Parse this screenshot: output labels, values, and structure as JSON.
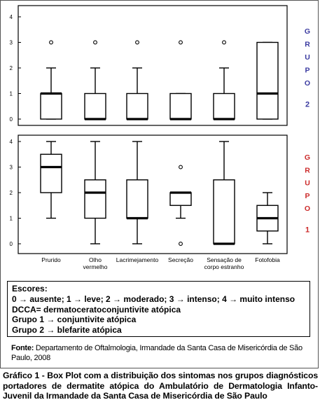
{
  "chart_data": [
    {
      "type": "boxplot",
      "group_label": "GRUPO 2",
      "group_label_color": "#3a3aa0",
      "ylim": [
        0,
        4
      ],
      "yticks": [
        "0",
        "1",
        "2",
        "3",
        "4"
      ],
      "categories": [
        "Prurido",
        "Olho vermelho",
        "Lacrimejamento",
        "Secreção",
        "Sensação de corpo estranho",
        "Fotofobia"
      ],
      "boxes": [
        {
          "q1": 0,
          "median": 1,
          "q3": 1,
          "whisker_low": 0,
          "whisker_high": 2,
          "outliers": [
            3
          ]
        },
        {
          "q1": 0,
          "median": 0,
          "q3": 1,
          "whisker_low": 0,
          "whisker_high": 2,
          "outliers": [
            3
          ]
        },
        {
          "q1": 0,
          "median": 0,
          "q3": 1,
          "whisker_low": 0,
          "whisker_high": 2,
          "outliers": [
            3
          ]
        },
        {
          "q1": 0,
          "median": 0,
          "q3": 1,
          "whisker_low": 0,
          "whisker_high": 1,
          "outliers": [
            3
          ]
        },
        {
          "q1": 0,
          "median": 0,
          "q3": 1,
          "whisker_low": 0,
          "whisker_high": 2,
          "outliers": [
            3
          ]
        },
        {
          "q1": 0,
          "median": 1,
          "q3": 3,
          "whisker_low": 0,
          "whisker_high": 3,
          "outliers": []
        }
      ]
    },
    {
      "type": "boxplot",
      "group_label": "GRUPO 1",
      "group_label_color": "#cc2a2a",
      "ylim": [
        0,
        4
      ],
      "yticks": [
        "0",
        "1",
        "2",
        "3",
        "4"
      ],
      "categories": [
        "Prurido",
        "Olho vermelho",
        "Lacrimejamento",
        "Secreção",
        "Sensação de corpo estranho",
        "Fotofobia"
      ],
      "boxes": [
        {
          "q1": 2,
          "median": 3,
          "q3": 3.5,
          "whisker_low": 1,
          "whisker_high": 4,
          "outliers": []
        },
        {
          "q1": 1,
          "median": 2,
          "q3": 2.5,
          "whisker_low": 0,
          "whisker_high": 4,
          "outliers": []
        },
        {
          "q1": 1,
          "median": 1,
          "q3": 2.5,
          "whisker_low": 0,
          "whisker_high": 4,
          "outliers": []
        },
        {
          "q1": 1.5,
          "median": 2,
          "q3": 2,
          "whisker_low": 1,
          "whisker_high": 2,
          "outliers": [
            3,
            0
          ]
        },
        {
          "q1": 0,
          "median": 0,
          "q3": 2.5,
          "whisker_low": 0,
          "whisker_high": 4,
          "outliers": []
        },
        {
          "q1": 0.5,
          "median": 1,
          "q3": 1.5,
          "whisker_low": 0,
          "whisker_high": 2,
          "outliers": []
        }
      ]
    }
  ],
  "x_labels": [
    [
      "Prurido"
    ],
    [
      "Olho",
      "vermelho"
    ],
    [
      "Lacrimejamento"
    ],
    [
      "Secreção"
    ],
    [
      "Sensação de",
      "corpo estranho"
    ],
    [
      "Fotofobia"
    ]
  ],
  "legend": {
    "title": "Escores:",
    "scores": "0 → ausente; 1 → leve; 2 → moderado; 3 → intenso; 4 → muito intenso",
    "dcca": "DCCA= dermatoceratoconjuntivite atópica",
    "grupo1": "Grupo 1 → conjuntivite atópica",
    "grupo2": "Grupo 2 → blefarite atópica"
  },
  "source": {
    "label": "Fonte:",
    "text": " Departamento de Oftalmologia, Irmandade da Santa Casa de Misericórdia de São Paulo, 2008"
  },
  "caption": "Gráfico 1 - Box Plot com a distribuição dos sintomas nos grupos diagnósticos portadores de dermatite atópica do Ambulatório de Dermatologia Infanto-Juvenil da Irmandade da Santa Casa de Misericórdia de São Paulo"
}
